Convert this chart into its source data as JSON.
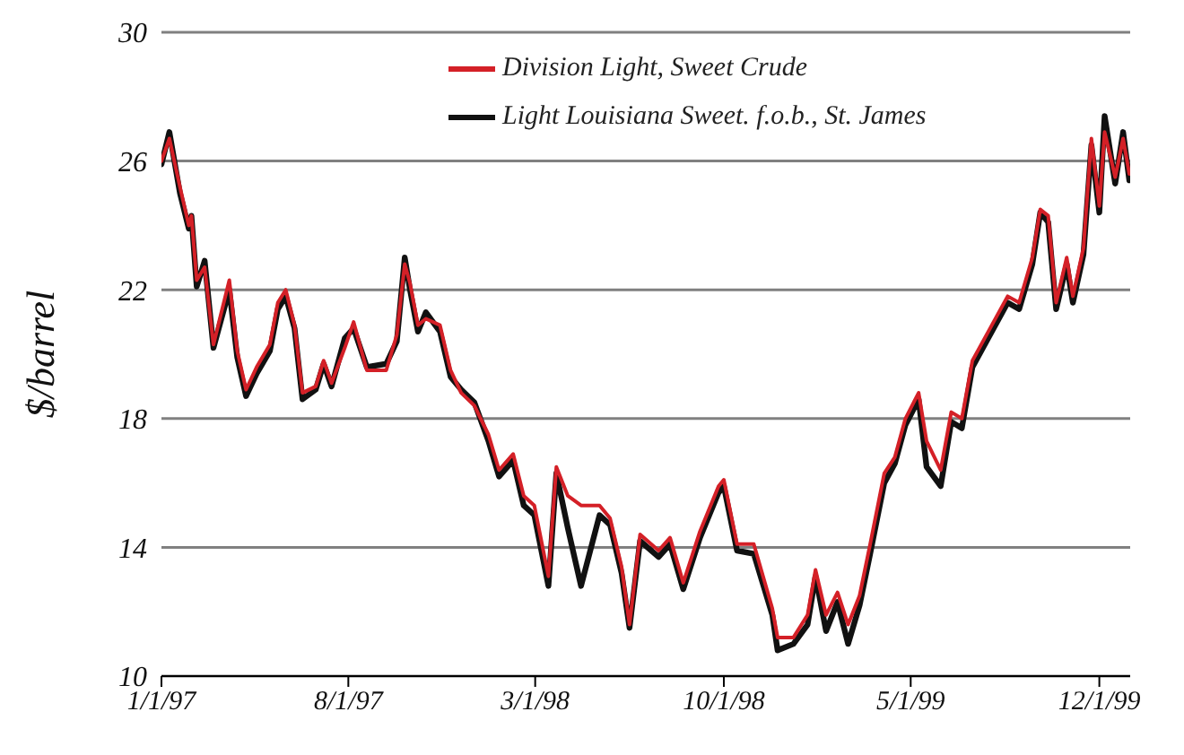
{
  "chart_data": {
    "type": "line",
    "ylabel": "$/barrel",
    "x": [
      "1997-01-01",
      "1997-01-10",
      "1997-01-22",
      "1997-02-01",
      "1997-02-04",
      "1997-02-10",
      "1997-02-19",
      "1997-03-01",
      "1997-03-10",
      "1997-03-19",
      "1997-03-28",
      "1997-04-07",
      "1997-04-19",
      "1997-05-04",
      "1997-05-13",
      "1997-05-22",
      "1997-06-01",
      "1997-06-10",
      "1997-06-25",
      "1997-07-04",
      "1997-07-13",
      "1997-07-28",
      "1997-08-07",
      "1997-08-22",
      "1997-09-13",
      "1997-09-25",
      "1997-10-04",
      "1997-10-10",
      "1997-10-19",
      "1997-10-28",
      "1997-11-13",
      "1997-11-25",
      "1997-12-07",
      "1997-12-22",
      "1998-01-07",
      "1998-01-19",
      "1998-02-04",
      "1998-02-16",
      "1998-02-28",
      "1998-03-16",
      "1998-03-25",
      "1998-04-07",
      "1998-04-22",
      "1998-05-13",
      "1998-05-25",
      "1998-06-07",
      "1998-06-16",
      "1998-06-28",
      "1998-07-19",
      "1998-08-01",
      "1998-08-16",
      "1998-09-04",
      "1998-09-25",
      "1998-10-01",
      "1998-10-16",
      "1998-11-04",
      "1998-11-25",
      "1998-12-01",
      "1998-12-19",
      "1999-01-04",
      "1999-01-13",
      "1999-01-25",
      "1999-02-07",
      "1999-02-19",
      "1999-03-04",
      "1999-03-16",
      "1999-04-01",
      "1999-04-13",
      "1999-04-25",
      "1999-05-10",
      "1999-05-19",
      "1999-06-04",
      "1999-06-16",
      "1999-06-28",
      "1999-07-10",
      "1999-07-28",
      "1999-08-19",
      "1999-09-01",
      "1999-09-16",
      "1999-09-25",
      "1999-10-04",
      "1999-10-13",
      "1999-10-25",
      "1999-11-01",
      "1999-11-13",
      "1999-11-22",
      "1999-12-01",
      "1999-12-07",
      "1999-12-19",
      "1999-12-28",
      "2000-01-04"
    ],
    "series": [
      {
        "name": "Division Light, Sweet Crude",
        "color": "#d42027",
        "values": [
          26.0,
          26.7,
          25.2,
          24.0,
          24.3,
          22.3,
          22.7,
          20.3,
          21.3,
          22.3,
          20.1,
          18.9,
          19.6,
          20.3,
          21.6,
          22.0,
          20.9,
          18.8,
          19.0,
          19.8,
          19.1,
          20.2,
          21.0,
          19.5,
          19.5,
          20.6,
          22.8,
          22.2,
          20.9,
          21.1,
          20.9,
          19.5,
          18.8,
          18.4,
          17.5,
          16.4,
          16.9,
          15.6,
          15.3,
          13.1,
          16.5,
          15.6,
          15.3,
          15.3,
          14.9,
          13.4,
          11.6,
          14.4,
          13.9,
          14.3,
          12.9,
          14.5,
          15.9,
          16.1,
          14.1,
          14.1,
          12.1,
          11.2,
          11.2,
          11.9,
          13.3,
          11.9,
          12.6,
          11.6,
          12.5,
          14.1,
          16.3,
          16.8,
          18.0,
          18.8,
          17.3,
          16.4,
          18.2,
          18.0,
          19.8,
          20.7,
          21.8,
          21.6,
          23.0,
          24.5,
          24.3,
          21.6,
          23.0,
          21.8,
          23.3,
          26.7,
          24.6,
          26.9,
          25.5,
          26.7,
          25.6
        ]
      },
      {
        "name": "Light Louisiana Sweet. f.o.b., St. James",
        "color": "#111111",
        "values": [
          25.9,
          26.9,
          25.0,
          23.9,
          24.3,
          22.1,
          22.9,
          20.2,
          21.1,
          22.0,
          19.9,
          18.7,
          19.4,
          20.1,
          21.4,
          21.8,
          20.8,
          18.6,
          18.9,
          19.7,
          19.0,
          20.5,
          20.8,
          19.6,
          19.7,
          20.4,
          23.0,
          22.0,
          20.7,
          21.3,
          20.7,
          19.3,
          18.9,
          18.5,
          17.3,
          16.2,
          16.7,
          15.3,
          15.0,
          12.8,
          16.3,
          14.6,
          12.8,
          15.0,
          14.7,
          13.2,
          11.5,
          14.2,
          13.7,
          14.1,
          12.7,
          14.3,
          15.7,
          15.9,
          13.9,
          13.8,
          11.9,
          10.8,
          11.0,
          11.6,
          13.1,
          11.4,
          12.3,
          11.0,
          12.2,
          13.8,
          16.0,
          16.6,
          17.8,
          18.6,
          16.5,
          15.9,
          17.9,
          17.7,
          19.6,
          20.5,
          21.6,
          21.4,
          22.8,
          24.4,
          24.1,
          21.4,
          22.8,
          21.6,
          23.1,
          26.5,
          24.4,
          27.4,
          25.3,
          26.9,
          25.4
        ]
      }
    ],
    "xlim": [
      "1997-01-01",
      "2000-01-05"
    ],
    "xticks": [
      {
        "value": "1997-01-01",
        "label": "1/1/97"
      },
      {
        "value": "1997-08-01",
        "label": "8/1/97"
      },
      {
        "value": "1998-03-01",
        "label": "3/1/98"
      },
      {
        "value": "1998-10-01",
        "label": "10/1/98"
      },
      {
        "value": "1999-05-01",
        "label": "5/1/99"
      },
      {
        "value": "1999-12-01",
        "label": "12/1/99"
      }
    ],
    "ylim": [
      10,
      30
    ],
    "yticks": [
      10,
      14,
      18,
      22,
      26,
      30
    ],
    "grid": "y",
    "legend": "top",
    "marker": "none",
    "line_style": "solid"
  }
}
